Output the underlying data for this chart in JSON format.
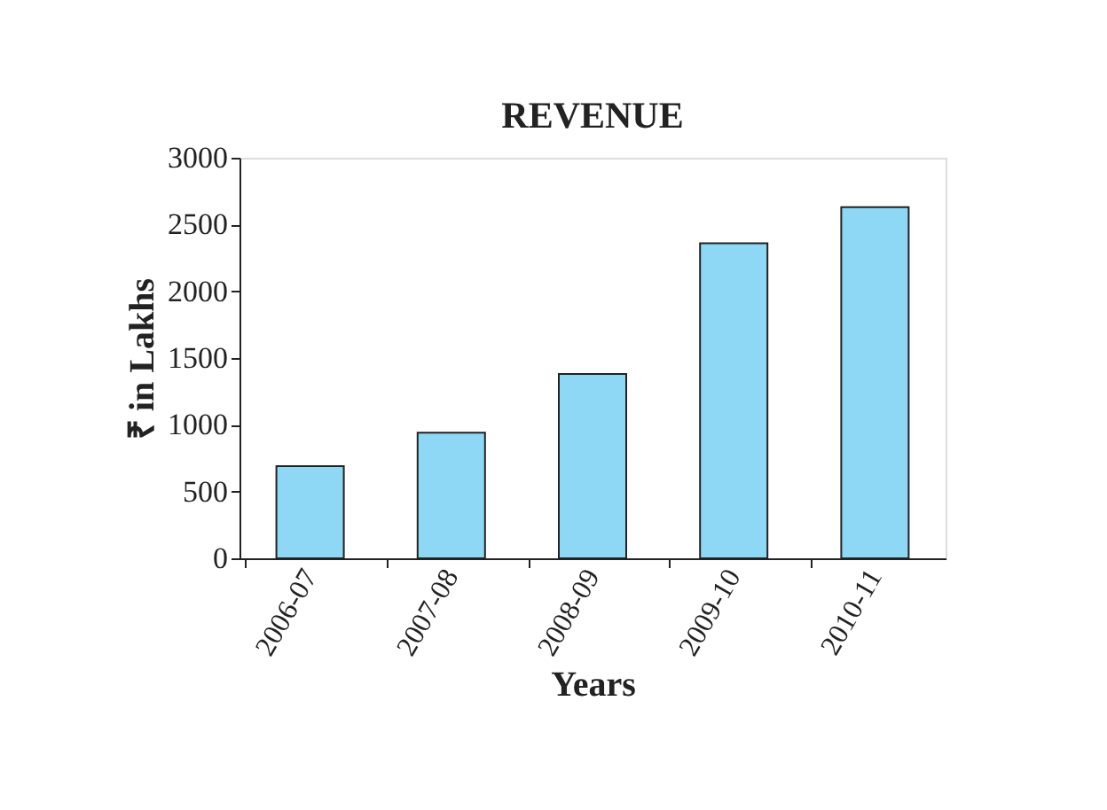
{
  "chart_data": {
    "type": "bar",
    "title": "REVENUE",
    "xlabel": "Years",
    "ylabel": "₹ in Lakhs",
    "categories": [
      "2006-07",
      "2007-08",
      "2008-09",
      "2009-10",
      "2010-11"
    ],
    "values": [
      690,
      940,
      1380,
      2360,
      2630
    ],
    "color": "#8ed8f5",
    "ylim": [
      0,
      3000
    ],
    "yticks": [
      0,
      500,
      1000,
      1500,
      2000,
      2500,
      3000
    ],
    "grid": false
  }
}
